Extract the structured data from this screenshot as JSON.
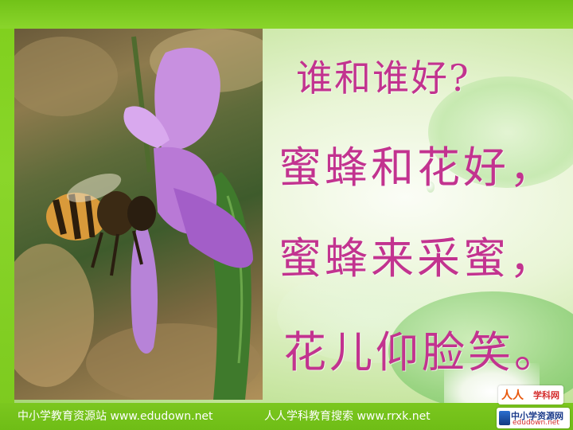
{
  "poem": {
    "line1": "谁和谁好?",
    "line2": "蜜蜂和花好，",
    "line3": "蜜蜂来采蜜，",
    "line4": "花儿仰脸笑。"
  },
  "footer": {
    "left": "中小学教育资源站 www.edudown.net",
    "right": "人人学科教育搜索 www.rrxk.net"
  },
  "logos": {
    "rrxk_mark": "人人",
    "rrxk_name": "学科网",
    "edudown_name": "中小学资源网",
    "edudown_url": "edudown.net"
  },
  "colors": {
    "text": "#c2338f",
    "frame_green": "#7fcf1c"
  },
  "image": {
    "subject": "bee-on-purple-flower"
  }
}
